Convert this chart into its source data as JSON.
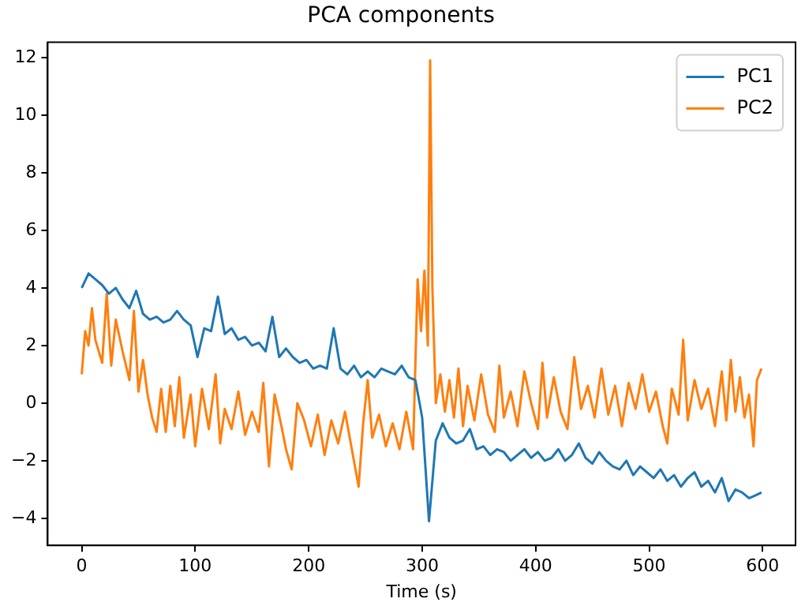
{
  "chart_data": {
    "type": "line",
    "title": "PCA components",
    "xlabel": "Time (s)",
    "xlim": [
      -30,
      629
    ],
    "xticks": [
      0,
      100,
      200,
      300,
      400,
      500,
      600
    ],
    "ylim": [
      -4.94,
      12.53
    ],
    "yticks": [
      -4,
      -2,
      0,
      2,
      4,
      6,
      8,
      10,
      12
    ],
    "grid": false,
    "legend": "top right",
    "marker": "none",
    "line_style": "solid",
    "series": [
      {
        "name": "PC1",
        "color": "#1f77b4",
        "x": [
          0,
          6,
          12,
          18,
          24,
          30,
          36,
          42,
          48,
          54,
          60,
          66,
          72,
          78,
          84,
          90,
          96,
          102,
          108,
          114,
          120,
          126,
          132,
          138,
          144,
          150,
          156,
          162,
          168,
          174,
          180,
          186,
          192,
          198,
          204,
          210,
          216,
          222,
          228,
          234,
          240,
          246,
          252,
          258,
          264,
          270,
          276,
          282,
          288,
          294,
          300,
          306,
          312,
          318,
          324,
          330,
          336,
          342,
          348,
          354,
          360,
          366,
          372,
          378,
          384,
          390,
          396,
          402,
          408,
          414,
          420,
          426,
          432,
          438,
          444,
          450,
          456,
          462,
          468,
          474,
          480,
          486,
          492,
          498,
          504,
          510,
          516,
          522,
          528,
          534,
          540,
          546,
          552,
          558,
          564,
          570,
          576,
          582,
          588,
          594,
          599
        ],
        "values": [
          4.0,
          4.5,
          4.3,
          4.1,
          3.8,
          4.0,
          3.6,
          3.3,
          3.9,
          3.1,
          2.9,
          3.0,
          2.8,
          2.9,
          3.2,
          2.9,
          2.7,
          1.6,
          2.6,
          2.5,
          3.7,
          2.4,
          2.6,
          2.2,
          2.3,
          2.0,
          2.1,
          1.8,
          3.0,
          1.6,
          1.9,
          1.6,
          1.4,
          1.5,
          1.2,
          1.3,
          1.2,
          2.6,
          1.2,
          1.0,
          1.3,
          0.9,
          1.1,
          0.9,
          1.2,
          1.1,
          1.0,
          1.3,
          0.9,
          0.8,
          -0.5,
          -4.1,
          -1.3,
          -0.7,
          -1.2,
          -1.4,
          -1.3,
          -0.9,
          -1.6,
          -1.5,
          -1.8,
          -1.6,
          -1.7,
          -2.0,
          -1.8,
          -1.6,
          -1.9,
          -1.7,
          -2.0,
          -1.9,
          -1.6,
          -2.0,
          -1.8,
          -1.4,
          -1.9,
          -2.1,
          -1.7,
          -2.0,
          -2.2,
          -2.3,
          -2.0,
          -2.5,
          -2.2,
          -2.4,
          -2.6,
          -2.3,
          -2.7,
          -2.5,
          -2.9,
          -2.6,
          -2.4,
          -2.9,
          -2.7,
          -3.1,
          -2.6,
          -3.4,
          -3.0,
          -3.1,
          -3.3,
          -3.2,
          -3.1
        ]
      },
      {
        "name": "PC2",
        "color": "#ff7f0e",
        "x": [
          0,
          3,
          6,
          9,
          12,
          18,
          22,
          26,
          30,
          36,
          42,
          46,
          50,
          54,
          58,
          62,
          66,
          70,
          74,
          78,
          82,
          86,
          90,
          96,
          100,
          106,
          112,
          118,
          122,
          126,
          132,
          138,
          144,
          150,
          156,
          160,
          165,
          170,
          176,
          180,
          185,
          190,
          196,
          202,
          208,
          214,
          220,
          226,
          232,
          238,
          244,
          248,
          252,
          256,
          262,
          268,
          274,
          280,
          286,
          292,
          296,
          299,
          302,
          305,
          307,
          309,
          312,
          316,
          320,
          324,
          328,
          332,
          336,
          340,
          346,
          352,
          358,
          364,
          368,
          372,
          378,
          384,
          390,
          396,
          402,
          406,
          410,
          416,
          422,
          428,
          434,
          440,
          446,
          452,
          458,
          464,
          470,
          476,
          482,
          488,
          494,
          500,
          506,
          512,
          516,
          520,
          526,
          530,
          534,
          540,
          546,
          552,
          558,
          564,
          568,
          572,
          576,
          580,
          584,
          588,
          592,
          595,
          599
        ],
        "values": [
          1.0,
          2.5,
          2.0,
          3.3,
          2.2,
          1.4,
          3.8,
          1.3,
          2.9,
          1.8,
          0.8,
          3.2,
          0.4,
          1.5,
          0.3,
          -0.5,
          -1.0,
          0.5,
          -1.0,
          0.6,
          -0.8,
          0.9,
          -1.2,
          0.3,
          -1.5,
          0.5,
          -0.9,
          1.0,
          -1.4,
          -0.2,
          -0.9,
          0.4,
          -1.1,
          -0.3,
          -1.0,
          0.7,
          -2.2,
          0.3,
          -0.8,
          -1.6,
          -2.3,
          0.0,
          -0.6,
          -1.5,
          -0.4,
          -1.8,
          -0.6,
          -1.4,
          -0.3,
          -1.6,
          -2.9,
          -0.7,
          0.8,
          -1.2,
          -0.4,
          -1.5,
          -0.7,
          -1.6,
          -0.3,
          -1.6,
          4.3,
          2.5,
          4.6,
          2.0,
          11.9,
          4.0,
          0.0,
          1.0,
          -0.3,
          0.8,
          -0.5,
          1.2,
          -0.8,
          0.6,
          -0.6,
          1.0,
          -0.4,
          -1.0,
          1.3,
          -0.5,
          0.4,
          -0.8,
          1.1,
          0.0,
          -0.9,
          1.4,
          -0.5,
          0.9,
          -0.3,
          -0.9,
          1.6,
          -0.2,
          0.6,
          -0.5,
          1.2,
          -0.4,
          0.6,
          -0.8,
          0.7,
          -0.2,
          1.0,
          -0.3,
          0.4,
          -0.8,
          -1.4,
          0.5,
          -0.4,
          2.2,
          -0.6,
          0.8,
          -0.2,
          0.5,
          -0.8,
          1.1,
          -0.6,
          1.5,
          -0.3,
          0.9,
          -0.5,
          0.3,
          -1.5,
          0.8,
          1.2
        ]
      }
    ]
  }
}
